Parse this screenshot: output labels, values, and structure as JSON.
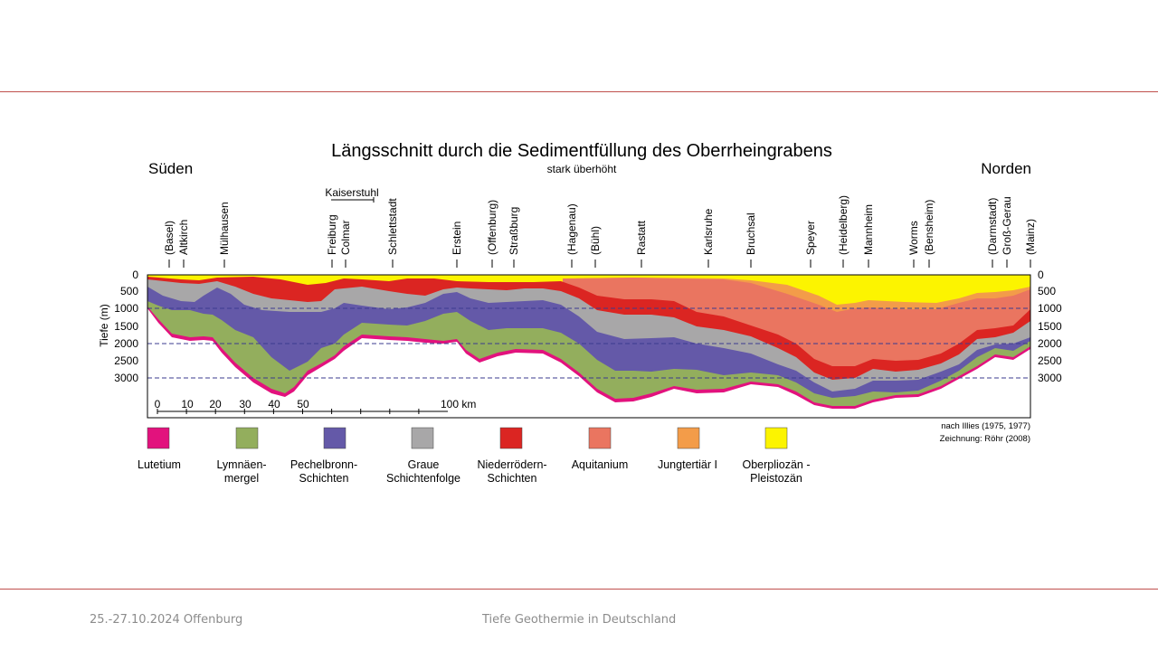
{
  "diagram": {
    "title": "Längsschnitt durch die Sedimentfüllung des Oberrheingrabens",
    "subtitle": "stark überhöht",
    "south_label": "Süden",
    "north_label": "Norden",
    "y_axis_label": "Tiefe (m)",
    "depth_ticks": [
      "0",
      "500",
      "1000",
      "1500",
      "2000",
      "2500",
      "3000"
    ],
    "locations": [
      "(Basel)",
      "Altkirch",
      "Mülhausen",
      "Freiburg",
      "Colmar",
      "Schlettstadt",
      "Erstein",
      "(Offenburg)",
      "Straßburg",
      "(Hagenau)",
      "(Bühl)",
      "Rastatt",
      "Karlsruhe",
      "Bruchsal",
      "Speyer",
      "(Heidelberg)",
      "Mannheim",
      "Worms",
      "(Bensheim)",
      "(Darmstadt)",
      "Groß-Gerau",
      "(Mainz)"
    ],
    "kaiserstuhl_label": "Kaiserstuhl",
    "scale_ticks": [
      "0",
      "10",
      "20",
      "30",
      "40",
      "50"
    ],
    "scale_end": "100 km",
    "credit_1": "nach Illies (1975, 1977)",
    "credit_2": "Zeichnung: Röhr (2008)",
    "legend": [
      {
        "label": "Lutetium",
        "color": "#e2127d"
      },
      {
        "label": "Lymnäen-\nmergel",
        "color": "#93ae5d"
      },
      {
        "label": "Pechelbronn-\nSchichten",
        "color": "#6459a8"
      },
      {
        "label": "Graue\nSchichtenfolge",
        "color": "#a8a7a8"
      },
      {
        "label": "Niederrödern-\nSchichten",
        "color": "#db2522"
      },
      {
        "label": "Aquitanium",
        "color": "#ea7560"
      },
      {
        "label": "Jungtertiär I",
        "color": "#f39c49"
      },
      {
        "label": "Oberpliozän -\nPleistozän",
        "color": "#fcf400"
      }
    ]
  },
  "footer": {
    "left": "25.-27.10.2024 Offenburg",
    "center": "Tiefe Geothermie in Deutschland"
  }
}
